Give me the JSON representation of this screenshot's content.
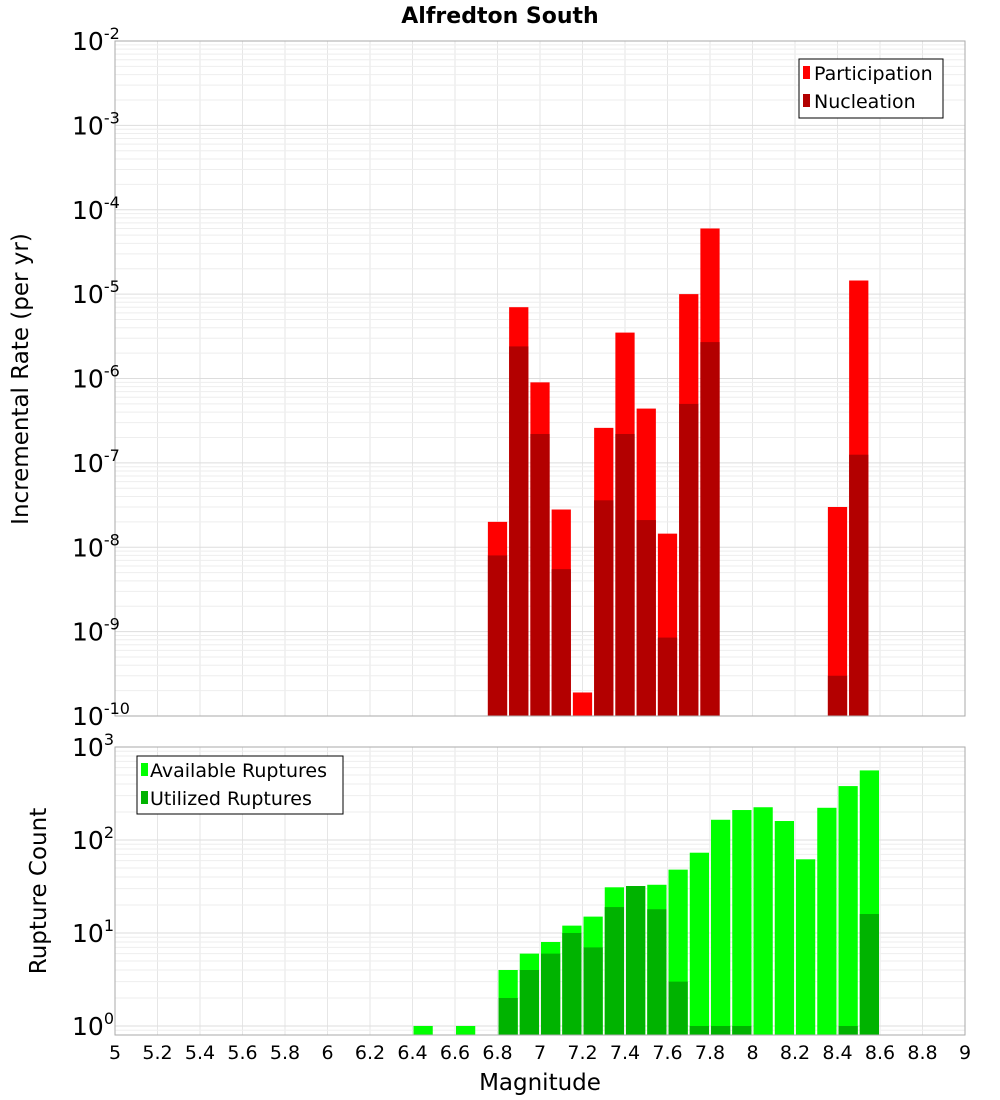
{
  "chart_data": [
    {
      "type": "bar",
      "title": "Alfredton South",
      "ylabel": "Incremental Rate (per yr)",
      "yscale": "log",
      "ylim": [
        1e-10,
        0.01
      ],
      "ytick_exponents": [
        "-10",
        "-9",
        "-8",
        "-7",
        "-6",
        "-5",
        "-4",
        "-3",
        "-2"
      ],
      "legend": {
        "position": "top-right",
        "entries": [
          "Participation",
          "Nucleation"
        ]
      },
      "x": [
        6.8,
        6.9,
        7.0,
        7.1,
        7.2,
        7.3,
        7.4,
        7.5,
        7.6,
        7.7,
        7.8,
        8.4,
        8.5
      ],
      "series": [
        {
          "name": "Participation",
          "color": "#ff0000",
          "values": [
            2e-08,
            7e-06,
            9e-07,
            2.8e-08,
            1.9e-10,
            2.6e-07,
            3.5e-06,
            4.4e-07,
            1.45e-08,
            1e-05,
            6e-05,
            3e-08,
            1.45e-05
          ]
        },
        {
          "name": "Nucleation",
          "color": "#b30000",
          "values": [
            8e-09,
            2.4e-06,
            2.2e-07,
            5.5e-09,
            null,
            3.6e-08,
            2.2e-07,
            2.1e-08,
            8.5e-10,
            5e-07,
            2.7e-06,
            3e-10,
            1.25e-07
          ]
        }
      ]
    },
    {
      "type": "bar",
      "xlabel": "Magnitude",
      "ylabel": "Rupture Count",
      "yscale": "log",
      "ylim": [
        0.8,
        1000
      ],
      "ytick_exponents": [
        "0",
        "1",
        "2",
        "3"
      ],
      "xlim": [
        5,
        9
      ],
      "xticks": [
        "5",
        "5.2",
        "5.4",
        "5.6",
        "5.8",
        "6",
        "6.2",
        "6.4",
        "6.6",
        "6.8",
        "7",
        "7.2",
        "7.4",
        "7.6",
        "7.8",
        "8",
        "8.2",
        "8.4",
        "8.6",
        "8.8",
        "9"
      ],
      "legend": {
        "position": "top-left",
        "entries": [
          "Available Ruptures",
          "Utilized Ruptures"
        ]
      },
      "x": [
        6.45,
        6.65,
        6.85,
        6.95,
        7.05,
        7.15,
        7.25,
        7.35,
        7.45,
        7.55,
        7.65,
        7.75,
        7.85,
        7.95,
        8.05,
        8.15,
        8.25,
        8.35,
        8.45,
        8.55
      ],
      "series": [
        {
          "name": "Available Ruptures",
          "color": "#00ff00",
          "values": [
            1,
            1,
            4,
            6,
            8,
            12,
            15,
            31,
            32,
            33,
            48,
            73,
            165,
            210,
            225,
            160,
            62,
            222,
            380,
            560
          ]
        },
        {
          "name": "Utilized Ruptures",
          "color": "#00b300",
          "values": [
            null,
            null,
            2,
            4,
            6,
            10,
            7,
            19,
            32,
            18,
            3,
            1,
            1,
            1,
            null,
            null,
            null,
            null,
            1,
            16
          ]
        }
      ]
    }
  ]
}
